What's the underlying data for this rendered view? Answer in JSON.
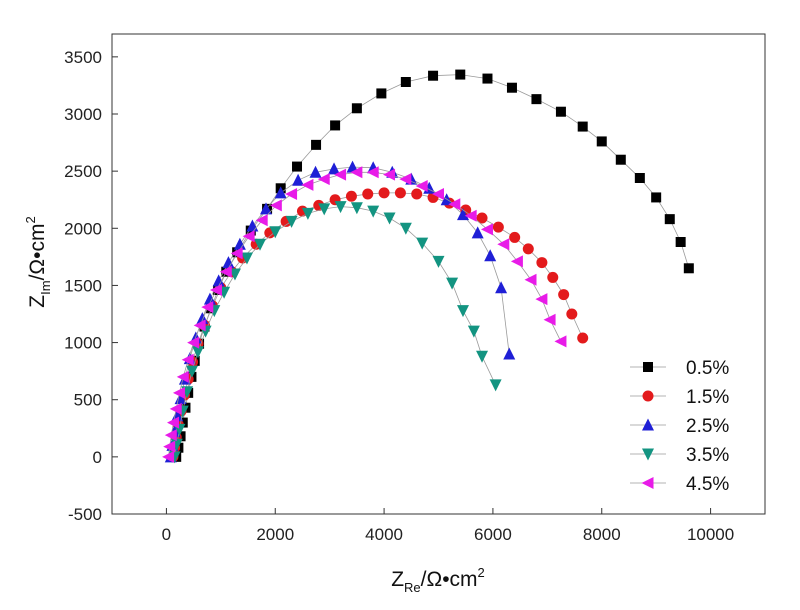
{
  "chart_data": {
    "type": "scatter",
    "title": "",
    "xlabel": {
      "main": "Z",
      "sub": "Re",
      "unit": "/Ω•cm",
      "sup": "2"
    },
    "ylabel": {
      "main": "Z",
      "sub": "Im",
      "unit": "/Ω•cm",
      "sup": "2"
    },
    "xlim": [
      -1000,
      11000
    ],
    "ylim": [
      -500,
      3700
    ],
    "xticks": [
      0,
      2000,
      4000,
      6000,
      8000,
      10000
    ],
    "yticks": [
      -500,
      0,
      500,
      1000,
      1500,
      2000,
      2500,
      3000,
      3500
    ],
    "legend_position": "bottom-right",
    "series": [
      {
        "name": "0.5%",
        "marker": "square",
        "color": "#000000",
        "points": [
          [
            180,
            0
          ],
          [
            220,
            80
          ],
          [
            260,
            180
          ],
          [
            300,
            300
          ],
          [
            350,
            430
          ],
          [
            400,
            560
          ],
          [
            460,
            700
          ],
          [
            520,
            840
          ],
          [
            600,
            990
          ],
          [
            700,
            1140
          ],
          [
            820,
            1300
          ],
          [
            950,
            1460
          ],
          [
            1100,
            1620
          ],
          [
            1300,
            1790
          ],
          [
            1550,
            1980
          ],
          [
            1850,
            2170
          ],
          [
            2100,
            2350
          ],
          [
            2400,
            2540
          ],
          [
            2750,
            2730
          ],
          [
            3100,
            2900
          ],
          [
            3500,
            3050
          ],
          [
            3950,
            3180
          ],
          [
            4400,
            3280
          ],
          [
            4900,
            3335
          ],
          [
            5400,
            3345
          ],
          [
            5900,
            3310
          ],
          [
            6350,
            3230
          ],
          [
            6800,
            3130
          ],
          [
            7250,
            3020
          ],
          [
            7650,
            2890
          ],
          [
            8000,
            2760
          ],
          [
            8350,
            2600
          ],
          [
            8700,
            2440
          ],
          [
            9000,
            2270
          ],
          [
            9250,
            2080
          ],
          [
            9450,
            1880
          ],
          [
            9600,
            1650
          ]
        ]
      },
      {
        "name": "1.5%",
        "marker": "circle",
        "color": "#e31a1c",
        "points": [
          [
            120,
            0
          ],
          [
            150,
            80
          ],
          [
            180,
            170
          ],
          [
            220,
            280
          ],
          [
            270,
            400
          ],
          [
            330,
            540
          ],
          [
            400,
            680
          ],
          [
            480,
            830
          ],
          [
            580,
            990
          ],
          [
            700,
            1150
          ],
          [
            850,
            1320
          ],
          [
            1000,
            1480
          ],
          [
            1200,
            1620
          ],
          [
            1400,
            1740
          ],
          [
            1650,
            1860
          ],
          [
            1900,
            1960
          ],
          [
            2200,
            2060
          ],
          [
            2500,
            2150
          ],
          [
            2800,
            2200
          ],
          [
            3100,
            2250
          ],
          [
            3400,
            2280
          ],
          [
            3700,
            2300
          ],
          [
            4000,
            2310
          ],
          [
            4300,
            2310
          ],
          [
            4600,
            2300
          ],
          [
            4900,
            2270
          ],
          [
            5200,
            2220
          ],
          [
            5500,
            2160
          ],
          [
            5800,
            2090
          ],
          [
            6100,
            2010
          ],
          [
            6400,
            1920
          ],
          [
            6650,
            1820
          ],
          [
            6900,
            1700
          ],
          [
            7100,
            1570
          ],
          [
            7300,
            1420
          ],
          [
            7450,
            1250
          ],
          [
            7650,
            1040
          ]
        ]
      },
      {
        "name": "2.5%",
        "marker": "triangle-up",
        "color": "#1f1fd6",
        "points": [
          [
            80,
            0
          ],
          [
            110,
            100
          ],
          [
            150,
            220
          ],
          [
            200,
            360
          ],
          [
            260,
            510
          ],
          [
            340,
            680
          ],
          [
            430,
            860
          ],
          [
            540,
            1040
          ],
          [
            660,
            1210
          ],
          [
            800,
            1380
          ],
          [
            960,
            1540
          ],
          [
            1140,
            1700
          ],
          [
            1350,
            1860
          ],
          [
            1580,
            2020
          ],
          [
            1830,
            2170
          ],
          [
            2100,
            2310
          ],
          [
            2420,
            2420
          ],
          [
            2740,
            2490
          ],
          [
            3080,
            2520
          ],
          [
            3420,
            2535
          ],
          [
            3800,
            2530
          ],
          [
            4150,
            2490
          ],
          [
            4500,
            2430
          ],
          [
            4830,
            2350
          ],
          [
            5150,
            2250
          ],
          [
            5450,
            2120
          ],
          [
            5720,
            1960
          ],
          [
            5950,
            1760
          ],
          [
            6150,
            1480
          ],
          [
            6300,
            900
          ]
        ]
      },
      {
        "name": "3.5%",
        "marker": "triangle-down",
        "color": "#139481",
        "points": [
          [
            150,
            0
          ],
          [
            190,
            110
          ],
          [
            240,
            240
          ],
          [
            300,
            400
          ],
          [
            380,
            570
          ],
          [
            470,
            750
          ],
          [
            580,
            920
          ],
          [
            720,
            1100
          ],
          [
            880,
            1280
          ],
          [
            1060,
            1440
          ],
          [
            1260,
            1600
          ],
          [
            1480,
            1740
          ],
          [
            1720,
            1860
          ],
          [
            2000,
            1970
          ],
          [
            2300,
            2060
          ],
          [
            2600,
            2130
          ],
          [
            2900,
            2170
          ],
          [
            3200,
            2190
          ],
          [
            3500,
            2180
          ],
          [
            3800,
            2150
          ],
          [
            4100,
            2090
          ],
          [
            4400,
            2000
          ],
          [
            4700,
            1870
          ],
          [
            5000,
            1710
          ],
          [
            5250,
            1520
          ],
          [
            5450,
            1280
          ],
          [
            5650,
            1100
          ],
          [
            5800,
            880
          ],
          [
            6050,
            630
          ]
        ]
      },
      {
        "name": "4.5%",
        "marker": "triangle-left",
        "color": "#e81be8",
        "points": [
          [
            40,
            0
          ],
          [
            60,
            90
          ],
          [
            90,
            190
          ],
          [
            130,
            300
          ],
          [
            180,
            420
          ],
          [
            240,
            560
          ],
          [
            310,
            700
          ],
          [
            400,
            850
          ],
          [
            500,
            1000
          ],
          [
            620,
            1150
          ],
          [
            760,
            1310
          ],
          [
            920,
            1460
          ],
          [
            1100,
            1620
          ],
          [
            1300,
            1780
          ],
          [
            1520,
            1930
          ],
          [
            1760,
            2070
          ],
          [
            2020,
            2200
          ],
          [
            2300,
            2300
          ],
          [
            2600,
            2380
          ],
          [
            2900,
            2430
          ],
          [
            3200,
            2470
          ],
          [
            3500,
            2490
          ],
          [
            3800,
            2490
          ],
          [
            4100,
            2470
          ],
          [
            4400,
            2430
          ],
          [
            4700,
            2370
          ],
          [
            5000,
            2300
          ],
          [
            5300,
            2210
          ],
          [
            5600,
            2110
          ],
          [
            5900,
            1990
          ],
          [
            6200,
            1860
          ],
          [
            6450,
            1710
          ],
          [
            6700,
            1550
          ],
          [
            6900,
            1380
          ],
          [
            7050,
            1200
          ],
          [
            7250,
            1010
          ]
        ]
      }
    ]
  }
}
